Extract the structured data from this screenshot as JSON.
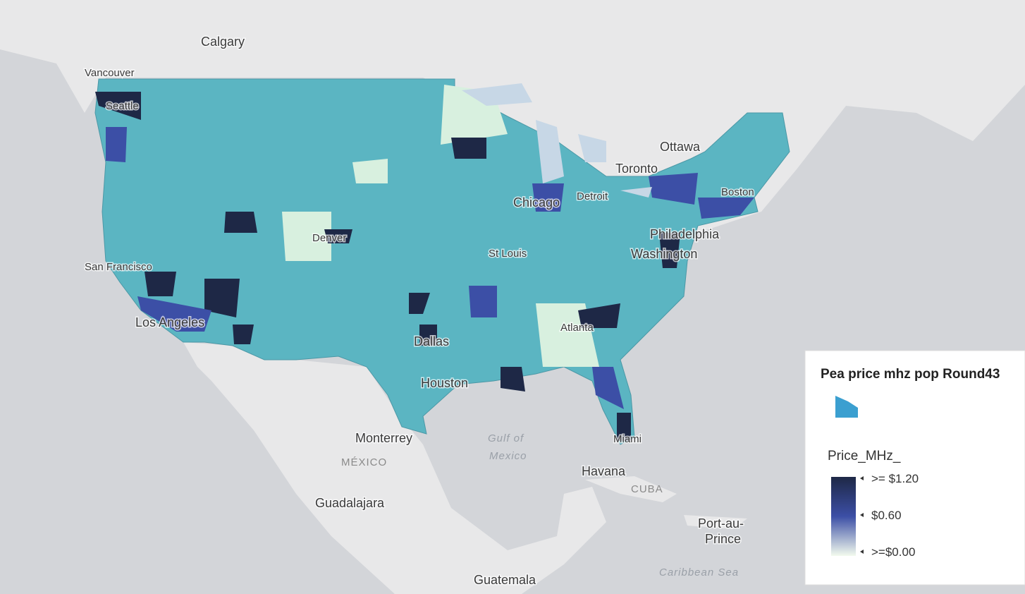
{
  "map": {
    "places": [
      "Calgary",
      "Vancouver",
      "Seattle",
      "Ottawa",
      "Toronto",
      "Boston",
      "Detroit",
      "Chicago",
      "Philadelphia",
      "Washington",
      "Denver",
      "St Louis",
      "San Francisco",
      "Los Angeles",
      "Atlanta",
      "Dallas",
      "Houston",
      "Miami",
      "Monterrey",
      "MÉXICO",
      "Gulf of",
      "Mexico",
      "Havana",
      "CUBA",
      "Port-au-",
      "Prince",
      "Guadalajara",
      "Guatemala",
      "Caribbean Sea"
    ]
  },
  "legend": {
    "title": "Pea price mhz pop Round43",
    "symbol_color": "#3b9fd0",
    "field": "Price_MHz_",
    "stops": [
      {
        "label": ">= $1.20",
        "color": "#1e2846"
      },
      {
        "label": "$0.60",
        "color": "#3c4fa6"
      },
      {
        "label": ">=$0.00",
        "color": "#f3fbee"
      }
    ]
  }
}
